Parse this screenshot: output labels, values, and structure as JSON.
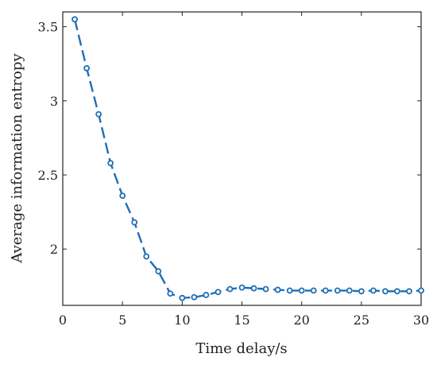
{
  "chart_data": {
    "type": "line",
    "title": "",
    "xlabel": "Time delay/s",
    "ylabel": "Average information entropy",
    "xlim": [
      0,
      30
    ],
    "ylim": [
      1.62,
      3.6
    ],
    "xticks": [
      0,
      5,
      10,
      15,
      20,
      25,
      30
    ],
    "xtick_labels": [
      "0",
      "5",
      "10",
      "15",
      "20",
      "25",
      "30"
    ],
    "yticks": [
      2,
      2.5,
      3,
      3.5
    ],
    "ytick_labels": [
      "2",
      "2.5",
      "3",
      "3.5"
    ],
    "grid": false,
    "line_style": "dashed",
    "color": "#1f6fb5",
    "series": [
      {
        "x": [
          1,
          2,
          3,
          4,
          5,
          6,
          7,
          8,
          9,
          10,
          11,
          12,
          13,
          14,
          15,
          16,
          17,
          18,
          19,
          20,
          21,
          22,
          23,
          24,
          25,
          26,
          27,
          28,
          29,
          30
        ],
        "values": [
          3.55,
          3.22,
          2.91,
          2.58,
          2.36,
          2.18,
          1.95,
          1.85,
          1.7,
          1.67,
          1.675,
          1.69,
          1.71,
          1.73,
          1.74,
          1.735,
          1.73,
          1.725,
          1.72,
          1.72,
          1.72,
          1.72,
          1.72,
          1.72,
          1.715,
          1.72,
          1.715,
          1.715,
          1.715,
          1.72
        ]
      }
    ]
  }
}
